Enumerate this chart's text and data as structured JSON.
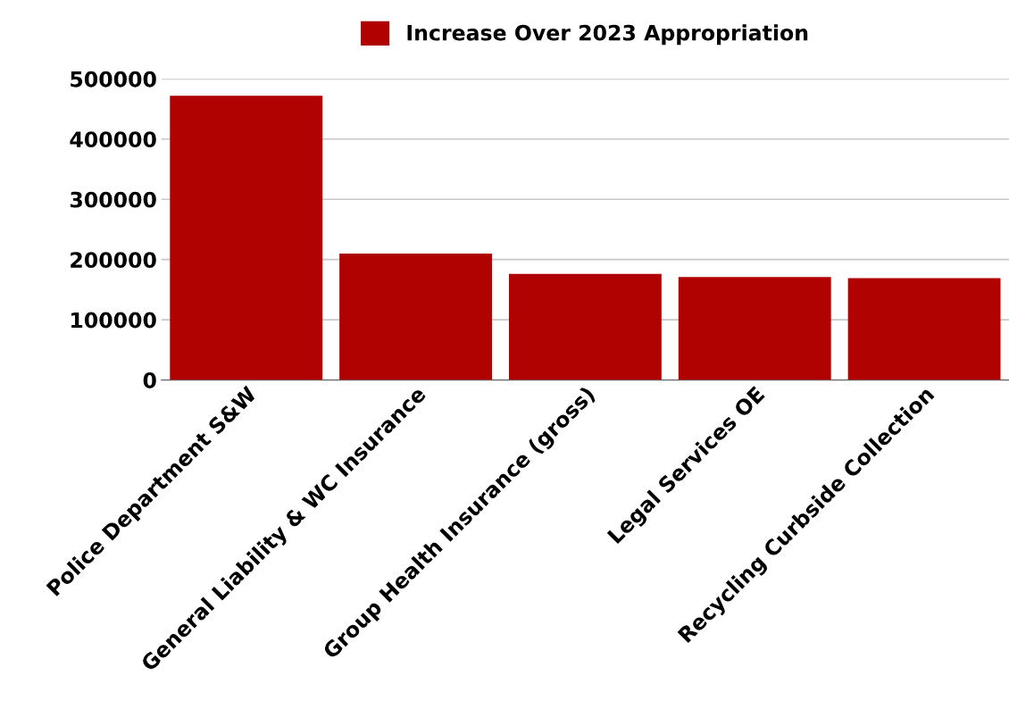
{
  "chart_data": {
    "type": "bar",
    "categories": [
      "Police Department S&W",
      "General Liability & WC Insurance",
      "Group Health Insurance (gross)",
      "Legal Services OE",
      "Recycling Curbside Collection"
    ],
    "series": [
      {
        "name": "Increase Over 2023 Appropriation",
        "color": "#b10202",
        "values": [
          472000,
          210000,
          176000,
          171000,
          169000
        ]
      }
    ],
    "ylim": [
      0,
      500000
    ],
    "yticks": [
      0,
      100000,
      200000,
      300000,
      400000,
      500000
    ],
    "grid": "y",
    "legend": "top"
  }
}
